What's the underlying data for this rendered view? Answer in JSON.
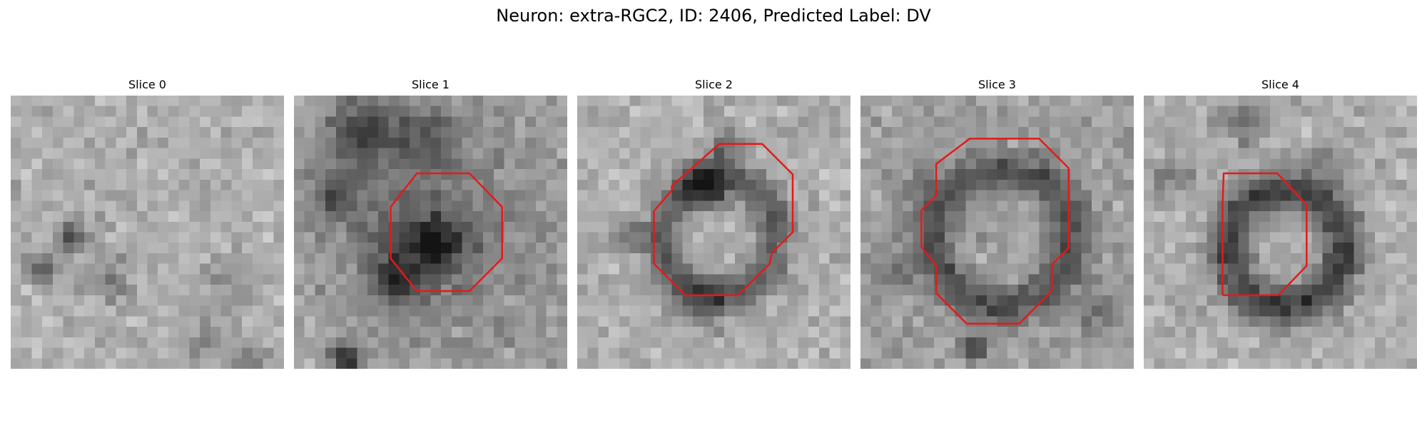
{
  "figure": {
    "title": "Neuron: extra-RGC2, ID: 2406, Predicted Label: DV",
    "contour_color": "#e61919"
  },
  "slices": [
    {
      "label": "Slice 0"
    },
    {
      "label": "Slice 1"
    },
    {
      "label": "Slice 2"
    },
    {
      "label": "Slice 3"
    },
    {
      "label": "Slice 4"
    }
  ]
}
